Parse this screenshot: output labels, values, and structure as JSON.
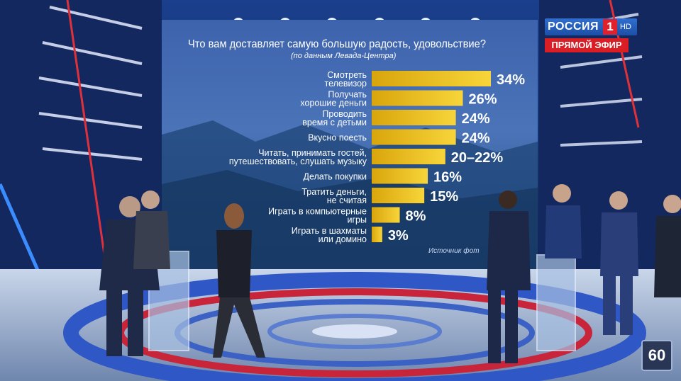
{
  "broadcast": {
    "channel": "РОССИЯ",
    "channel_number": "1",
    "hd": "HD",
    "live": "ПРЯМОЙ ЭФИР",
    "show_badge": "60"
  },
  "screen": {
    "source": "Источник фот"
  },
  "chart_data": {
    "type": "bar",
    "orientation": "horizontal",
    "title": "Что вам доставляет самую большую радость, удовольствие?",
    "subtitle": "(по данным Левада-Центра)",
    "categories": [
      [
        "Смотреть",
        "телевизор"
      ],
      [
        "Получать",
        "хорошие деньги"
      ],
      [
        "Проводить",
        "время с детьми"
      ],
      [
        "Вкусно поесть"
      ],
      [
        "Читать, принимать гостей,",
        "путешествовать, слушать музыку"
      ],
      [
        "Делать покупки"
      ],
      [
        "Тратить деньги,",
        "не считая"
      ],
      [
        "Играть в компьютерные",
        "игры"
      ],
      [
        "Играть в шахматы",
        "или домино"
      ]
    ],
    "values": [
      34,
      26,
      24,
      24,
      21,
      16,
      15,
      8,
      3
    ],
    "value_labels": [
      "34%",
      "26%",
      "24%",
      "24%",
      "20–22%",
      "16%",
      "15%",
      "8%",
      "3%"
    ],
    "bar_color": "#f2c21b",
    "xlim": [
      0,
      40
    ],
    "legend": "none",
    "grid": false
  }
}
